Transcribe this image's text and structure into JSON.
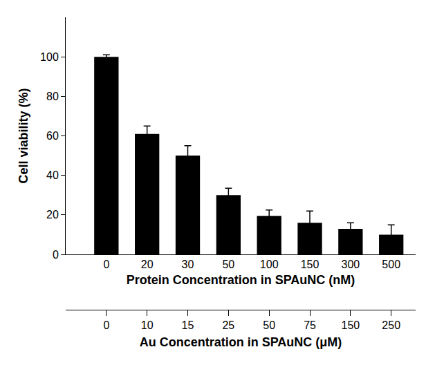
{
  "chart_data": {
    "type": "bar",
    "categories": [
      "0",
      "20",
      "30",
      "50",
      "100",
      "150",
      "300",
      "500"
    ],
    "values": [
      100,
      61,
      50,
      30,
      19.5,
      16,
      13,
      10
    ],
    "errors": [
      1,
      4,
      5,
      3.5,
      3,
      6,
      3,
      5
    ],
    "color": "#000000",
    "x_label": "Protein Concentration in SPAuNC (nM)",
    "y_label": "Cell viability (%)",
    "x2_label": "Au Concentration in SPAuNC (μM)",
    "x2_categories": [
      "0",
      "10",
      "15",
      "25",
      "50",
      "75",
      "150",
      "250"
    ],
    "ylim": [
      0,
      120
    ],
    "yticks": [
      0,
      20,
      40,
      60,
      80,
      100
    ],
    "grid": false
  }
}
